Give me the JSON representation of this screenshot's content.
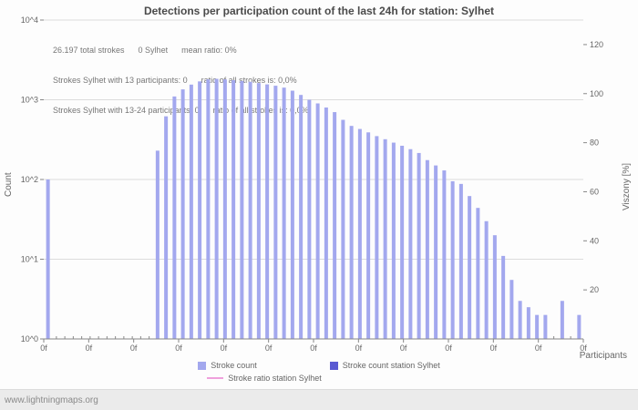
{
  "title": "Detections per participation count of the last 24h for station: Sylhet",
  "annotations": [
    "26.197 total strokes      0 Sylhet      mean ratio: 0%",
    "Strokes Sylhet with 13 participants: 0      ratio of all strokes is: 0,0%",
    "Strokes Sylhet with 13-24 participants: 0      ratio of all strokes is: 0,0%"
  ],
  "axes": {
    "left_label": "Count",
    "right_label": "Viszony [%]",
    "x_label": "Participants",
    "left_ticks": [
      "10^4",
      "10^3",
      "10^2",
      "10^1",
      "10^0"
    ],
    "right_ticks": [
      "120",
      "100",
      "80",
      "60",
      "40",
      "20"
    ],
    "x_tick_labels": [
      "0f",
      "0f",
      "0f",
      "0f",
      "0f",
      "0f",
      "0f",
      "0f",
      "0f",
      "0f",
      "0f",
      "0f",
      "0f"
    ]
  },
  "legend": {
    "items": [
      {
        "label": "Stroke count",
        "color": "#a3a8ee",
        "type": "square"
      },
      {
        "label": "Stroke count station Sylhet",
        "color": "#5a5ad2",
        "type": "square"
      },
      {
        "label": "Stroke ratio station Sylhet",
        "color": "#efa0dc",
        "type": "line"
      }
    ]
  },
  "footer": "www.lightningmaps.org",
  "colors": {
    "grid": "#dcdcdc",
    "axis": "#888888",
    "tick_text": "#666666",
    "bar": "#a3a8ee",
    "station_bar": "#5a5ad2",
    "ratio_line": "#efa0dc"
  },
  "chart_data": {
    "type": "bar",
    "title": "Detections per participation count of the last 24h for station: Sylhet",
    "xlabel": "Participants",
    "ylabel": "Count",
    "ylabel_right": "Viszony [%]",
    "y_scale": "log",
    "ylim": [
      1,
      10000
    ],
    "ylim_right": [
      0,
      130
    ],
    "x_slots": 64,
    "grid": true,
    "legend_position": "bottom",
    "series": [
      {
        "name": "Stroke count",
        "color": "#a3a8ee",
        "points": [
          [
            0,
            100
          ],
          [
            13,
            230
          ],
          [
            14,
            620
          ],
          [
            15,
            1100
          ],
          [
            16,
            1350
          ],
          [
            17,
            1550
          ],
          [
            18,
            1700
          ],
          [
            19,
            1800
          ],
          [
            20,
            1830
          ],
          [
            21,
            1800
          ],
          [
            22,
            1760
          ],
          [
            23,
            1720
          ],
          [
            24,
            1680
          ],
          [
            25,
            1620
          ],
          [
            26,
            1560
          ],
          [
            27,
            1500
          ],
          [
            28,
            1420
          ],
          [
            29,
            1300
          ],
          [
            30,
            1150
          ],
          [
            31,
            1000
          ],
          [
            32,
            900
          ],
          [
            33,
            800
          ],
          [
            34,
            700
          ],
          [
            35,
            560
          ],
          [
            36,
            470
          ],
          [
            37,
            430
          ],
          [
            38,
            390
          ],
          [
            39,
            350
          ],
          [
            40,
            320
          ],
          [
            41,
            290
          ],
          [
            42,
            265
          ],
          [
            43,
            240
          ],
          [
            44,
            215
          ],
          [
            45,
            175
          ],
          [
            46,
            150
          ],
          [
            47,
            130
          ],
          [
            48,
            95
          ],
          [
            49,
            88
          ],
          [
            50,
            62
          ],
          [
            51,
            44
          ],
          [
            52,
            30
          ],
          [
            53,
            20
          ],
          [
            54,
            11
          ],
          [
            55,
            5.5
          ],
          [
            56,
            3
          ],
          [
            57,
            2.5
          ],
          [
            58,
            2
          ],
          [
            59,
            2
          ],
          [
            61,
            3
          ],
          [
            63,
            2
          ]
        ]
      },
      {
        "name": "Stroke count station Sylhet",
        "color": "#5a5ad2",
        "points": []
      },
      {
        "name": "Stroke ratio station Sylhet",
        "color": "#efa0dc",
        "points": []
      }
    ]
  }
}
